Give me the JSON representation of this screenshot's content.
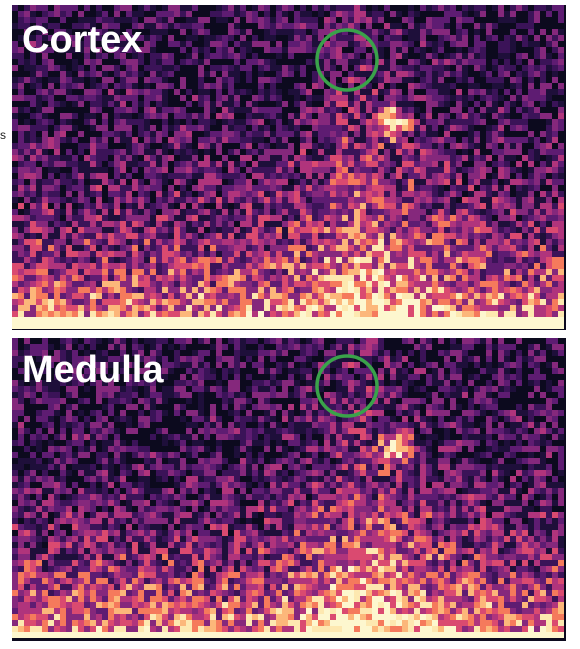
{
  "panels": [
    {
      "label": "Cortex"
    },
    {
      "label": "Medulla"
    }
  ],
  "edge_text": "s"
}
